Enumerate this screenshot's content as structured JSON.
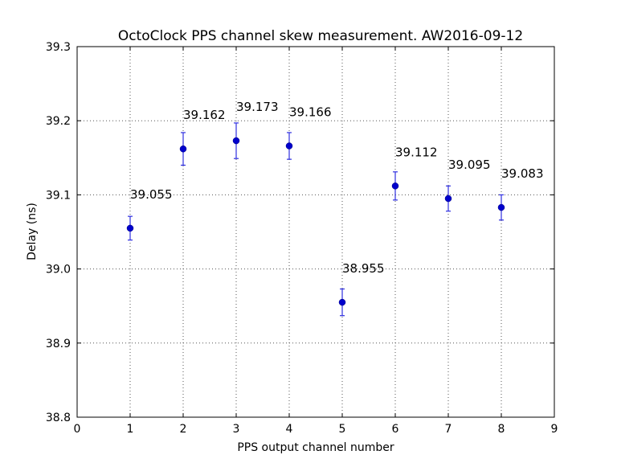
{
  "chart_data": {
    "type": "scatter",
    "title": "OctoClock PPS channel skew measurement. AW2016-09-12",
    "xlabel": "PPS output channel number",
    "ylabel": "Delay (ns)",
    "xlim": [
      0,
      9
    ],
    "ylim": [
      38.8,
      39.3
    ],
    "xticks": [
      0,
      1,
      2,
      3,
      4,
      5,
      6,
      7,
      8,
      9
    ],
    "yticks": [
      38.8,
      38.9,
      39.0,
      39.1,
      39.2,
      39.3
    ],
    "xtick_labels": [
      "0",
      "1",
      "2",
      "3",
      "4",
      "5",
      "6",
      "7",
      "8",
      "9"
    ],
    "ytick_labels": [
      "38.8",
      "38.9",
      "39.0",
      "39.1",
      "39.2",
      "39.3"
    ],
    "grid": true,
    "grid_style": "dotted",
    "colors": {
      "marker": "#0000cc",
      "errorbar": "#2f2fe0",
      "grid": "#555555"
    },
    "points": [
      {
        "x": 1,
        "y": 39.055,
        "err": 0.016,
        "label": "39.055"
      },
      {
        "x": 2,
        "y": 39.162,
        "err": 0.022,
        "label": "39.162"
      },
      {
        "x": 3,
        "y": 39.173,
        "err": 0.024,
        "label": "39.173"
      },
      {
        "x": 4,
        "y": 39.166,
        "err": 0.018,
        "label": "39.166"
      },
      {
        "x": 5,
        "y": 38.955,
        "err": 0.018,
        "label": "38.955"
      },
      {
        "x": 6,
        "y": 39.112,
        "err": 0.019,
        "label": "39.112"
      },
      {
        "x": 7,
        "y": 39.095,
        "err": 0.017,
        "label": "39.095"
      },
      {
        "x": 8,
        "y": 39.083,
        "err": 0.017,
        "label": "39.083"
      }
    ]
  }
}
